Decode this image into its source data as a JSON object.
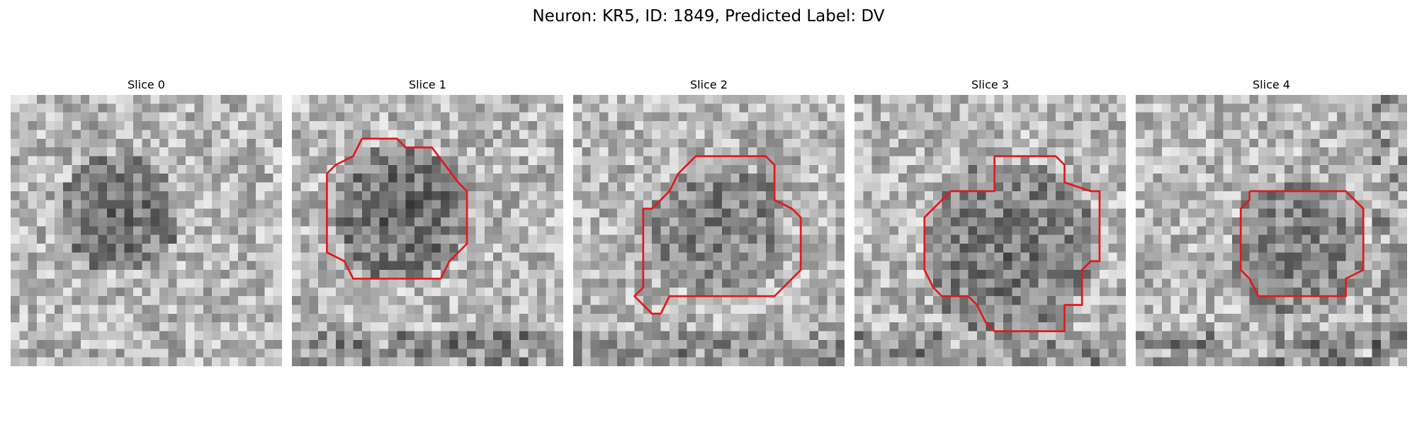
{
  "figure": {
    "title": "Neuron: KR5, ID: 1849, Predicted Label: DV"
  },
  "panels": [
    {
      "title": "Slice 0",
      "has_contour": false,
      "dark_level": 0.55
    },
    {
      "title": "Slice 1",
      "has_contour": true,
      "dark_level": 0.6
    },
    {
      "title": "Slice 2",
      "has_contour": true,
      "dark_level": 0.45
    },
    {
      "title": "Slice 3",
      "has_contour": true,
      "dark_level": 0.5
    },
    {
      "title": "Slice 4",
      "has_contour": true,
      "dark_level": 0.45
    }
  ],
  "contour_color": "#e31a1c",
  "colormap": "grayscale"
}
